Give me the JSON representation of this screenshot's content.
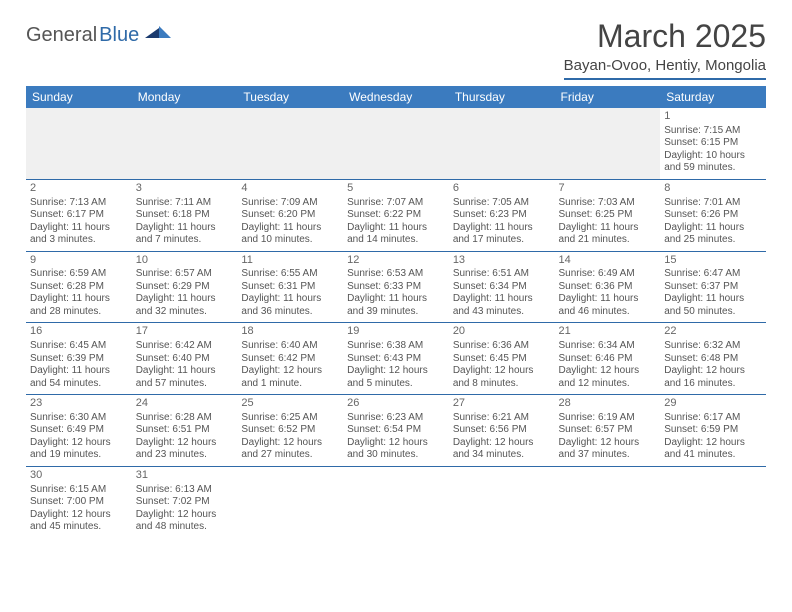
{
  "logo": {
    "main": "General",
    "accent": "Blue"
  },
  "title": "March 2025",
  "location": "Bayan-Ovoo, Hentiy, Mongolia",
  "days": [
    "Sunday",
    "Monday",
    "Tuesday",
    "Wednesday",
    "Thursday",
    "Friday",
    "Saturday"
  ],
  "colors": {
    "header_bg": "#3b7bbf",
    "rule": "#2f6aa8",
    "text": "#555555"
  },
  "weeks": [
    [
      {
        "n": "",
        "sr": "",
        "ss": "",
        "dl": ""
      },
      {
        "n": "",
        "sr": "",
        "ss": "",
        "dl": ""
      },
      {
        "n": "",
        "sr": "",
        "ss": "",
        "dl": ""
      },
      {
        "n": "",
        "sr": "",
        "ss": "",
        "dl": ""
      },
      {
        "n": "",
        "sr": "",
        "ss": "",
        "dl": ""
      },
      {
        "n": "",
        "sr": "",
        "ss": "",
        "dl": ""
      },
      {
        "n": "1",
        "sr": "Sunrise: 7:15 AM",
        "ss": "Sunset: 6:15 PM",
        "dl": "Daylight: 10 hours and 59 minutes."
      }
    ],
    [
      {
        "n": "2",
        "sr": "Sunrise: 7:13 AM",
        "ss": "Sunset: 6:17 PM",
        "dl": "Daylight: 11 hours and 3 minutes."
      },
      {
        "n": "3",
        "sr": "Sunrise: 7:11 AM",
        "ss": "Sunset: 6:18 PM",
        "dl": "Daylight: 11 hours and 7 minutes."
      },
      {
        "n": "4",
        "sr": "Sunrise: 7:09 AM",
        "ss": "Sunset: 6:20 PM",
        "dl": "Daylight: 11 hours and 10 minutes."
      },
      {
        "n": "5",
        "sr": "Sunrise: 7:07 AM",
        "ss": "Sunset: 6:22 PM",
        "dl": "Daylight: 11 hours and 14 minutes."
      },
      {
        "n": "6",
        "sr": "Sunrise: 7:05 AM",
        "ss": "Sunset: 6:23 PM",
        "dl": "Daylight: 11 hours and 17 minutes."
      },
      {
        "n": "7",
        "sr": "Sunrise: 7:03 AM",
        "ss": "Sunset: 6:25 PM",
        "dl": "Daylight: 11 hours and 21 minutes."
      },
      {
        "n": "8",
        "sr": "Sunrise: 7:01 AM",
        "ss": "Sunset: 6:26 PM",
        "dl": "Daylight: 11 hours and 25 minutes."
      }
    ],
    [
      {
        "n": "9",
        "sr": "Sunrise: 6:59 AM",
        "ss": "Sunset: 6:28 PM",
        "dl": "Daylight: 11 hours and 28 minutes."
      },
      {
        "n": "10",
        "sr": "Sunrise: 6:57 AM",
        "ss": "Sunset: 6:29 PM",
        "dl": "Daylight: 11 hours and 32 minutes."
      },
      {
        "n": "11",
        "sr": "Sunrise: 6:55 AM",
        "ss": "Sunset: 6:31 PM",
        "dl": "Daylight: 11 hours and 36 minutes."
      },
      {
        "n": "12",
        "sr": "Sunrise: 6:53 AM",
        "ss": "Sunset: 6:33 PM",
        "dl": "Daylight: 11 hours and 39 minutes."
      },
      {
        "n": "13",
        "sr": "Sunrise: 6:51 AM",
        "ss": "Sunset: 6:34 PM",
        "dl": "Daylight: 11 hours and 43 minutes."
      },
      {
        "n": "14",
        "sr": "Sunrise: 6:49 AM",
        "ss": "Sunset: 6:36 PM",
        "dl": "Daylight: 11 hours and 46 minutes."
      },
      {
        "n": "15",
        "sr": "Sunrise: 6:47 AM",
        "ss": "Sunset: 6:37 PM",
        "dl": "Daylight: 11 hours and 50 minutes."
      }
    ],
    [
      {
        "n": "16",
        "sr": "Sunrise: 6:45 AM",
        "ss": "Sunset: 6:39 PM",
        "dl": "Daylight: 11 hours and 54 minutes."
      },
      {
        "n": "17",
        "sr": "Sunrise: 6:42 AM",
        "ss": "Sunset: 6:40 PM",
        "dl": "Daylight: 11 hours and 57 minutes."
      },
      {
        "n": "18",
        "sr": "Sunrise: 6:40 AM",
        "ss": "Sunset: 6:42 PM",
        "dl": "Daylight: 12 hours and 1 minute."
      },
      {
        "n": "19",
        "sr": "Sunrise: 6:38 AM",
        "ss": "Sunset: 6:43 PM",
        "dl": "Daylight: 12 hours and 5 minutes."
      },
      {
        "n": "20",
        "sr": "Sunrise: 6:36 AM",
        "ss": "Sunset: 6:45 PM",
        "dl": "Daylight: 12 hours and 8 minutes."
      },
      {
        "n": "21",
        "sr": "Sunrise: 6:34 AM",
        "ss": "Sunset: 6:46 PM",
        "dl": "Daylight: 12 hours and 12 minutes."
      },
      {
        "n": "22",
        "sr": "Sunrise: 6:32 AM",
        "ss": "Sunset: 6:48 PM",
        "dl": "Daylight: 12 hours and 16 minutes."
      }
    ],
    [
      {
        "n": "23",
        "sr": "Sunrise: 6:30 AM",
        "ss": "Sunset: 6:49 PM",
        "dl": "Daylight: 12 hours and 19 minutes."
      },
      {
        "n": "24",
        "sr": "Sunrise: 6:28 AM",
        "ss": "Sunset: 6:51 PM",
        "dl": "Daylight: 12 hours and 23 minutes."
      },
      {
        "n": "25",
        "sr": "Sunrise: 6:25 AM",
        "ss": "Sunset: 6:52 PM",
        "dl": "Daylight: 12 hours and 27 minutes."
      },
      {
        "n": "26",
        "sr": "Sunrise: 6:23 AM",
        "ss": "Sunset: 6:54 PM",
        "dl": "Daylight: 12 hours and 30 minutes."
      },
      {
        "n": "27",
        "sr": "Sunrise: 6:21 AM",
        "ss": "Sunset: 6:56 PM",
        "dl": "Daylight: 12 hours and 34 minutes."
      },
      {
        "n": "28",
        "sr": "Sunrise: 6:19 AM",
        "ss": "Sunset: 6:57 PM",
        "dl": "Daylight: 12 hours and 37 minutes."
      },
      {
        "n": "29",
        "sr": "Sunrise: 6:17 AM",
        "ss": "Sunset: 6:59 PM",
        "dl": "Daylight: 12 hours and 41 minutes."
      }
    ],
    [
      {
        "n": "30",
        "sr": "Sunrise: 6:15 AM",
        "ss": "Sunset: 7:00 PM",
        "dl": "Daylight: 12 hours and 45 minutes."
      },
      {
        "n": "31",
        "sr": "Sunrise: 6:13 AM",
        "ss": "Sunset: 7:02 PM",
        "dl": "Daylight: 12 hours and 48 minutes."
      },
      {
        "n": "",
        "sr": "",
        "ss": "",
        "dl": ""
      },
      {
        "n": "",
        "sr": "",
        "ss": "",
        "dl": ""
      },
      {
        "n": "",
        "sr": "",
        "ss": "",
        "dl": ""
      },
      {
        "n": "",
        "sr": "",
        "ss": "",
        "dl": ""
      },
      {
        "n": "",
        "sr": "",
        "ss": "",
        "dl": ""
      }
    ]
  ]
}
